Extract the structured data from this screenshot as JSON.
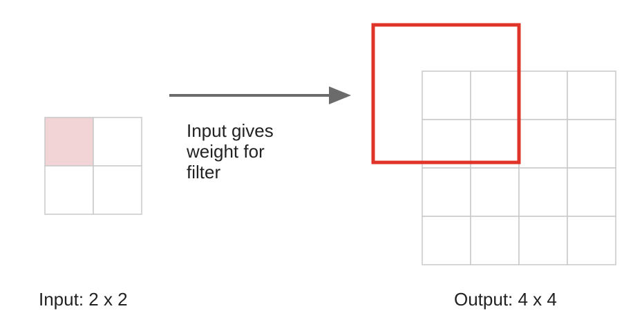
{
  "input": {
    "label": "Input: 2 x 2",
    "rows": 2,
    "cols": 2,
    "highlighted_cell": [
      0,
      0
    ]
  },
  "output": {
    "label": "Output: 4 x 4",
    "rows": 4,
    "cols": 4
  },
  "caption": {
    "lines": [
      "Input gives",
      "weight for",
      "filter"
    ]
  },
  "colors": {
    "grid_line": "#c8c8c8",
    "highlight_fill": "#f2d4d6",
    "filter_box": "#e0342a",
    "arrow": "#6b6b6b",
    "text": "#222222"
  }
}
